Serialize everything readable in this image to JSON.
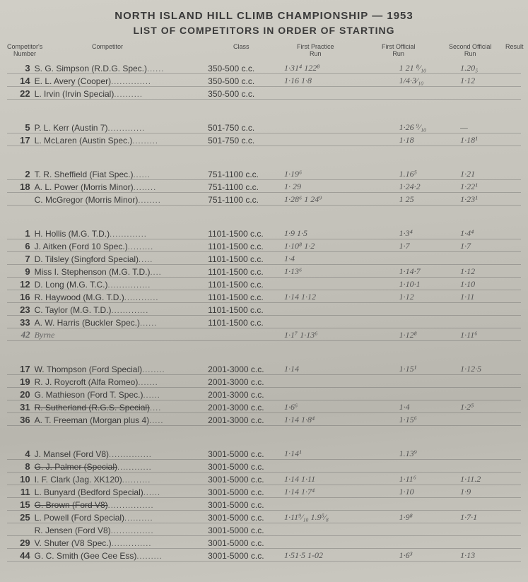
{
  "title1": "NORTH ISLAND HILL CLIMB CHAMPIONSHIP — 1953",
  "title2": "LIST OF COMPETITORS IN ORDER OF STARTING",
  "headers": {
    "num": "Competitor's\nNumber",
    "comp": "Competitor",
    "cls": "Class",
    "fp": "First Practice\nRun",
    "fo": "First Official\nRun",
    "so": "Second Official\nRun",
    "res": "Result"
  },
  "groups": [
    {
      "rows": [
        {
          "n": "3",
          "name": "S. G. Simpson (R.D.G. Spec.)",
          "cls": "350-500 c.c.",
          "fp": "1·31⁴   122⁸",
          "fo": "1  21 ⁸⁄₁₀",
          "so": "1.20₅"
        },
        {
          "n": "14",
          "name": "E. L. Avery (Cooper)",
          "cls": "350-500 c.c.",
          "fp": "1·16      1·8",
          "fo": "1/4·3⁄₁₀",
          "so": "1·12"
        },
        {
          "n": "22",
          "name": "L. Irvin (Irvin Special)",
          "cls": "350-500 c.c.",
          "fp": "",
          "fo": "",
          "so": ""
        }
      ]
    },
    {
      "rows": [
        {
          "n": "5",
          "name": "P. L. Kerr (Austin 7)",
          "cls": "501-750 c.c.",
          "fp": "",
          "fo": "1·26 ⁹⁄₁₀",
          "so": "—"
        },
        {
          "n": "17",
          "name": "L. McLaren (Austin Spec.)",
          "cls": "501-750 c.c.",
          "fp": "",
          "fo": "1·18",
          "so": "1·18¹"
        }
      ]
    },
    {
      "rows": [
        {
          "n": "2",
          "name": "T. R. Sheffield (Fiat Spec.)",
          "cls": "751-1100 c.c.",
          "fp": "1·19⁶",
          "fo": "1.16⁵",
          "so": "1·21"
        },
        {
          "n": "18",
          "name": "A. L. Power (Morris Minor)",
          "cls": "751-1100 c.c.",
          "fp": "1· 29",
          "fo": "1·24·2",
          "so": "1·22¹"
        },
        {
          "n": "",
          "name": "C. McGregor (Morris Minor)",
          "cls": "751-1100 c.c.",
          "fp": "1·28⁶    1 24⁹",
          "fo": "1 25",
          "so": "1·23¹"
        }
      ]
    },
    {
      "rows": [
        {
          "n": "1",
          "name": "H. Hollis (M.G. T.D.)",
          "cls": "1101-1500 c.c.",
          "fp": "1·9      1·5",
          "fo": "1·3⁴",
          "so": "1·4⁴"
        },
        {
          "n": "6",
          "name": "J. Aitken (Ford 10 Spec.)",
          "cls": "1101-1500 c.c.",
          "fp": "1·10⁸    1·2",
          "fo": "1·7",
          "so": "1·7"
        },
        {
          "n": "7",
          "name": "D. Tilsley (Singford Special)",
          "cls": "1101-1500 c.c.",
          "fp": "1·4",
          "fo": "",
          "so": ""
        },
        {
          "n": "9",
          "name": "Miss I. Stephenson (M.G. T.D.)",
          "cls": "1101-1500 c.c.",
          "fp": "1·13⁶",
          "fo": "1·14·7",
          "so": "1·12"
        },
        {
          "n": "12",
          "name": "D. Long (M.G. T.C.)",
          "cls": "1101-1500 c.c.",
          "fp": "",
          "fo": "1·10·1",
          "so": "1·10"
        },
        {
          "n": "16",
          "name": "R. Haywood (M.G. T.D.)",
          "cls": "1101-1500 c.c.",
          "fp": "1·14    1·12",
          "fo": "1·12",
          "so": "1·11"
        },
        {
          "n": "23",
          "name": "C. Taylor (M.G. T.D.)",
          "cls": "1101-1500 c.c.",
          "fp": "",
          "fo": "",
          "so": ""
        },
        {
          "n": "33",
          "name": "A. W. Harris (Buckler Spec.)",
          "cls": "1101-1500 c.c.",
          "fp": "",
          "fo": "",
          "so": ""
        },
        {
          "n": "42",
          "name": "Byrne",
          "cls": "",
          "fp": "1·1⁷    1·13⁶",
          "fo": "1·12⁸",
          "so": "1·11⁶",
          "hand": true
        }
      ]
    },
    {
      "rows": [
        {
          "n": "17",
          "name": "W. Thompson (Ford Special)",
          "cls": "2001-3000 c.c.",
          "fp": "1·14",
          "fo": "1·15¹",
          "so": "1·12·5"
        },
        {
          "n": "19",
          "name": "R. J. Roycroft (Alfa Romeo)",
          "cls": "2001-3000 c.c.",
          "fp": "",
          "fo": "",
          "so": ""
        },
        {
          "n": "20",
          "name": "G. Mathieson (Ford T. Spec.)",
          "cls": "2001-3000 c.c.",
          "fp": "",
          "fo": "",
          "so": ""
        },
        {
          "n": "31",
          "name": "R. Sutherland (R.G.S. Special)",
          "cls": "2001-3000 c.c.",
          "fp": "1·6⁶",
          "fo": "1·4",
          "so": "1·2⁵",
          "struck": true
        },
        {
          "n": "36",
          "name": "A. T. Freeman (Morgan plus 4)",
          "cls": "2001-3000 c.c.",
          "fp": "1·14    1·8⁴",
          "fo": "1·15⁶",
          "so": ""
        }
      ]
    },
    {
      "rows": [
        {
          "n": "4",
          "name": "J. Mansel (Ford V8)",
          "cls": "3001-5000 c.c.",
          "fp": "1·14¹",
          "fo": "1.13⁹",
          "so": ""
        },
        {
          "n": "8",
          "name": "G. J. Palmer (Special)",
          "cls": "3001-5000 c.c.",
          "fp": "",
          "fo": "",
          "so": "",
          "struck": true
        },
        {
          "n": "10",
          "name": "I. F. Clark (Jag. XK120)",
          "cls": "3001-5000 c.c.",
          "fp": "1·14    1·11",
          "fo": "1·11⁶",
          "so": "1·11.2"
        },
        {
          "n": "11",
          "name": "L. Bunyard (Bedford Special)",
          "cls": "3001-5000 c.c.",
          "fp": "1·14    1·7⁴",
          "fo": "1·10",
          "so": "1·9"
        },
        {
          "n": "15",
          "name": "G. Brown (Ford V8)",
          "cls": "3001-5000 c.c.",
          "fp": "",
          "fo": "",
          "so": "",
          "struck": true
        },
        {
          "n": "25",
          "name": "L. Powell (Ford Special)",
          "cls": "3001-5000 c.c.",
          "fp": "1·11⁹⁄₁₀  1.9⁵⁄₈",
          "fo": "1·9⁸",
          "so": "1·7·1"
        },
        {
          "n": "",
          "name": "R. Jensen (Ford V8)",
          "cls": "3001-5000 c.c.",
          "fp": "",
          "fo": "",
          "so": ""
        },
        {
          "n": "29",
          "name": "V. Shuter (V8 Spec.)",
          "cls": "3001-5000 c.c.",
          "fp": "",
          "fo": "",
          "so": ""
        },
        {
          "n": "44",
          "name": "G. C. Smith (Gee Cee Ess)",
          "cls": "3001-5000 c.c.",
          "fp": "1·51·5    1-02",
          "fo": "1·6³",
          "so": "1·13"
        }
      ]
    }
  ]
}
